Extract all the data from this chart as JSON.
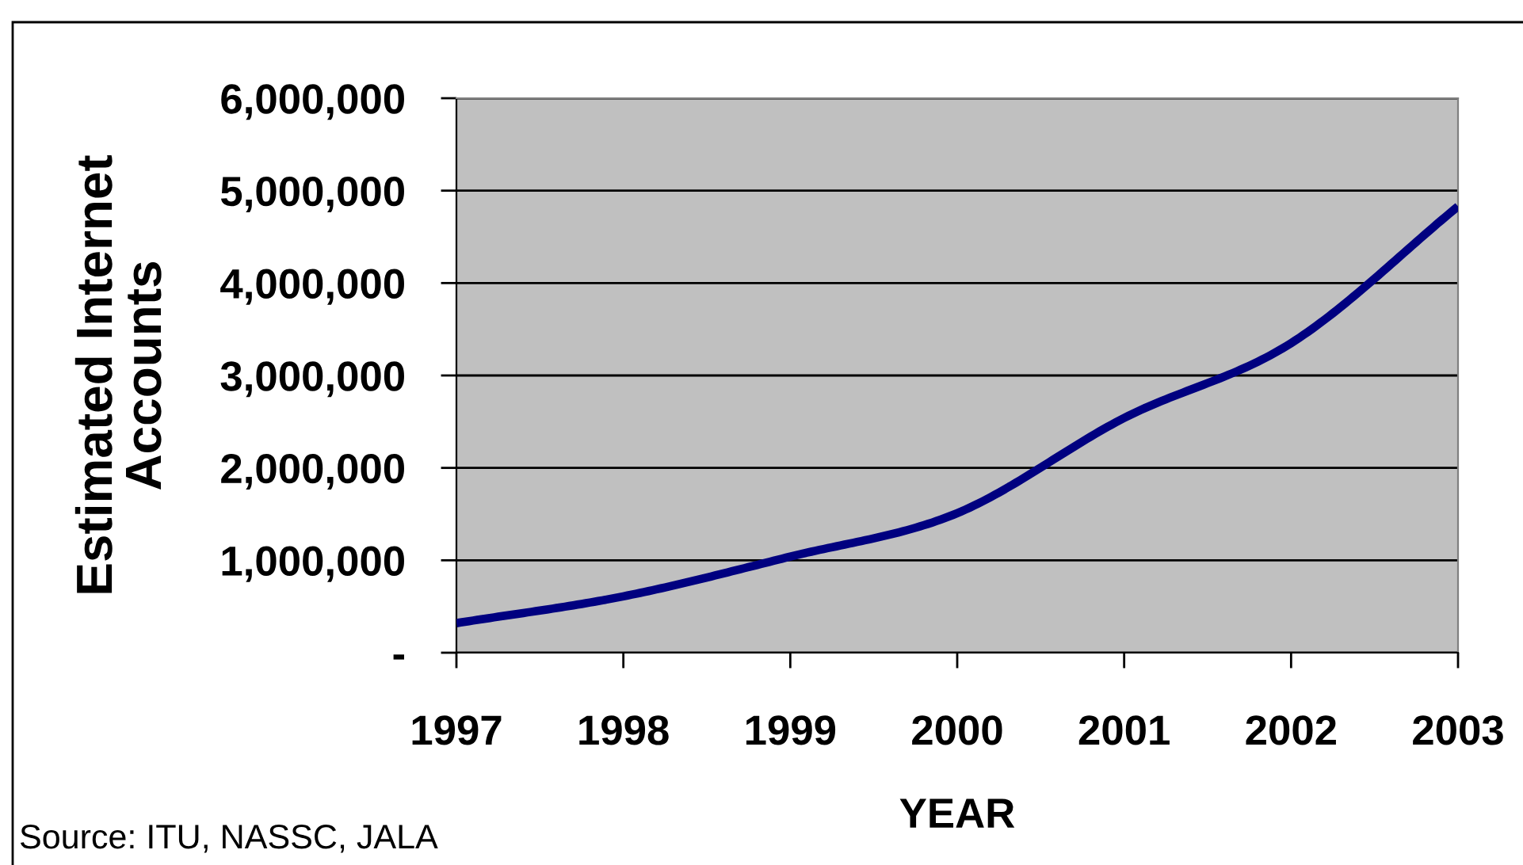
{
  "chart_data": {
    "type": "line",
    "xlabel": "YEAR",
    "ylabel": "Estimated Internet\nAccounts",
    "x": [
      1997,
      1998,
      1999,
      2000,
      2001,
      2002,
      2003
    ],
    "series": [
      {
        "color": "#000080",
        "values": [
          320000,
          610000,
          1040000,
          1510000,
          2540000,
          3350000,
          4830000
        ]
      }
    ],
    "xlim": [
      1997,
      2003
    ],
    "xticks": [
      1997,
      1998,
      1999,
      2000,
      2001,
      2002,
      2003
    ],
    "ylim": [
      0,
      6000000
    ],
    "yticks": [
      {
        "value": 0,
        "label": "-"
      },
      {
        "value": 1000000,
        "label": "1,000,000"
      },
      {
        "value": 2000000,
        "label": "2,000,000"
      },
      {
        "value": 3000000,
        "label": "3,000,000"
      },
      {
        "value": 4000000,
        "label": "4,000,000"
      },
      {
        "value": 5000000,
        "label": "5,000,000"
      },
      {
        "value": 6000000,
        "label": "6,000,000"
      }
    ],
    "grid": "y",
    "marker": "none",
    "line_style": "solid",
    "annotations": [
      "Source: ITU, NASSC, JALA"
    ]
  }
}
